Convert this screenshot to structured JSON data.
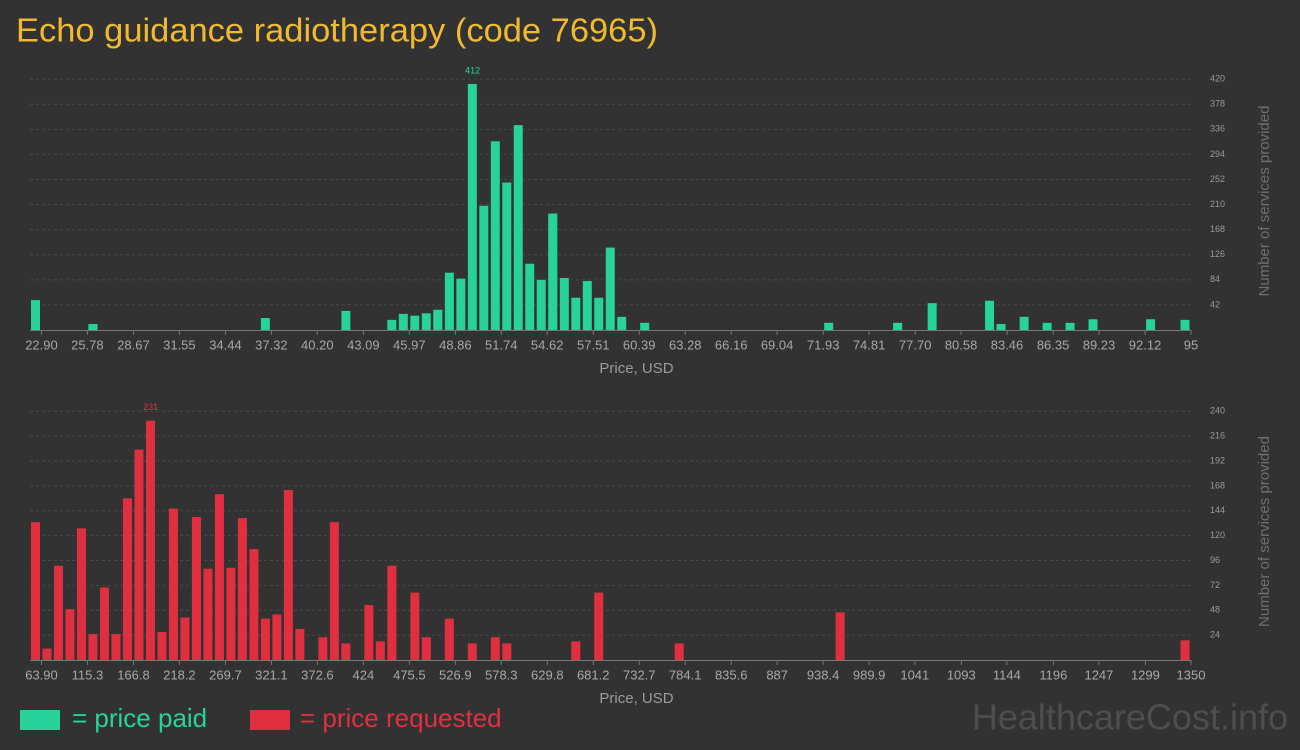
{
  "title": "Echo guidance radiotherapy (code 76965)",
  "watermark": "HealthcareCost.info",
  "chart_data": [
    {
      "type": "histogram",
      "xlabel": "Price, USD",
      "ylabel": "Number of services provided",
      "series": [
        {
          "name": "= price paid",
          "color": "#27d39a",
          "values": [
            50,
            0,
            0,
            0,
            0,
            10,
            0,
            0,
            0,
            0,
            0,
            0,
            0,
            0,
            0,
            0,
            0,
            0,
            0,
            0,
            20,
            0,
            0,
            0,
            0,
            0,
            0,
            32,
            0,
            0,
            0,
            17,
            27,
            24,
            28,
            34,
            96,
            86,
            412,
            208,
            316,
            247,
            343,
            111,
            84,
            195,
            87,
            54,
            82,
            54,
            138,
            22,
            0,
            12,
            0,
            0,
            0,
            0,
            0,
            0,
            0,
            0,
            0,
            0,
            0,
            0,
            0,
            0,
            0,
            12,
            0,
            0,
            0,
            0,
            0,
            12,
            0,
            0,
            45,
            0,
            0,
            0,
            0,
            49,
            10,
            0,
            22,
            0,
            12,
            0,
            12,
            0,
            18,
            0,
            0,
            0,
            0,
            18,
            0,
            0,
            17
          ]
        }
      ],
      "bins": [
        22.18,
        22.9,
        23.62,
        24.34,
        25.06,
        25.78,
        26.51,
        27.23,
        27.95,
        28.67,
        29.39,
        30.11,
        30.83,
        31.55,
        32.27,
        32.99,
        33.72,
        34.44,
        35.16,
        35.88,
        36.6,
        37.32,
        38.04,
        38.76,
        39.48,
        40.2,
        40.93,
        41.65,
        42.37,
        43.09,
        43.81,
        44.53,
        45.25,
        45.97,
        46.69,
        47.41,
        48.14,
        48.86,
        49.58,
        50.3,
        51.02,
        51.74,
        52.46,
        53.18,
        53.9,
        54.62,
        55.35,
        56.07,
        56.79,
        57.51,
        58.23,
        58.95,
        59.67,
        60.39,
        61.11,
        61.83,
        62.56,
        63.28,
        64.0,
        64.72,
        65.44,
        66.16,
        66.88,
        67.6,
        68.32,
        69.04,
        69.77,
        70.49,
        71.21,
        71.93,
        72.65,
        73.37,
        74.09,
        74.81,
        75.53,
        76.25,
        76.98,
        77.7,
        78.42,
        79.14,
        79.86,
        80.58,
        81.3,
        82.02,
        82.74,
        83.46,
        84.19,
        84.91,
        85.63,
        86.35,
        87.07,
        87.79,
        88.51,
        89.23,
        89.95,
        90.67,
        91.4,
        92.12,
        92.84,
        93.56,
        94.28,
        95.0
      ],
      "xlim": [
        22.18,
        95
      ],
      "xticks": [
        {
          "value": 22.9,
          "label": "22.90"
        },
        25.78,
        28.67,
        31.55,
        34.44,
        37.32,
        {
          "value": 40.2,
          "label": "40.20"
        },
        43.09,
        45.97,
        48.86,
        51.74,
        54.62,
        57.51,
        60.39,
        63.28,
        66.16,
        69.04,
        71.93,
        74.81,
        {
          "value": 77.7,
          "label": "77.70"
        },
        80.58,
        83.46,
        86.35,
        89.23,
        92.12,
        95
      ],
      "ylim": [
        0,
        432
      ],
      "yticks": [
        42,
        84,
        126,
        168,
        210,
        252,
        294,
        336,
        378,
        420
      ],
      "grid": true
    },
    {
      "type": "histogram",
      "xlabel": "Price, USD",
      "ylabel": "Number of services provided",
      "series": [
        {
          "name": "= price requested",
          "color": "#e0303f",
          "values": [
            133,
            11,
            91,
            49,
            127,
            25,
            70,
            25,
            156,
            203,
            231,
            27,
            146,
            41,
            138,
            88,
            160,
            89,
            137,
            107,
            40,
            44,
            164,
            30,
            0,
            22,
            133,
            16,
            0,
            53,
            18,
            91,
            0,
            65,
            22,
            0,
            40,
            0,
            16,
            0,
            22,
            16,
            0,
            0,
            0,
            0,
            0,
            18,
            0,
            65,
            0,
            0,
            0,
            0,
            0,
            0,
            16,
            0,
            0,
            0,
            0,
            0,
            0,
            0,
            0,
            0,
            0,
            0,
            0,
            0,
            46,
            0,
            0,
            0,
            0,
            0,
            0,
            0,
            0,
            0,
            0,
            0,
            0,
            0,
            0,
            0,
            0,
            0,
            0,
            0,
            0,
            0,
            0,
            0,
            0,
            0,
            0,
            0,
            0,
            0,
            19
          ]
        }
      ],
      "bins": [
        51.04,
        63.9,
        76.76,
        89.62,
        102.48,
        115.35,
        128.21,
        141.07,
        153.93,
        166.79,
        179.65,
        192.51,
        205.37,
        218.23,
        231.09,
        243.96,
        256.82,
        269.68,
        282.54,
        295.4,
        308.26,
        321.12,
        333.98,
        346.84,
        359.7,
        372.57,
        385.43,
        398.29,
        411.15,
        424.01,
        436.87,
        449.73,
        462.59,
        475.45,
        488.31,
        501.18,
        514.04,
        526.9,
        539.76,
        552.62,
        565.48,
        578.34,
        591.2,
        604.06,
        616.92,
        629.79,
        642.65,
        655.51,
        668.37,
        681.23,
        694.09,
        706.95,
        719.81,
        732.67,
        745.53,
        758.4,
        771.26,
        784.12,
        796.98,
        809.84,
        822.7,
        835.56,
        848.42,
        861.28,
        874.14,
        887.01,
        899.87,
        912.73,
        925.59,
        938.45,
        951.31,
        964.17,
        977.03,
        989.89,
        1002.75,
        1015.62,
        1028.48,
        1041.34,
        1054.2,
        1067.06,
        1079.92,
        1092.78,
        1105.64,
        1118.5,
        1131.36,
        1144.23,
        1157.09,
        1169.95,
        1182.81,
        1195.67,
        1208.53,
        1221.39,
        1234.25,
        1247.11,
        1259.97,
        1272.84,
        1285.7,
        1298.56,
        1311.42,
        1324.28,
        1337.14,
        1350.0
      ],
      "xlim": [
        51.04,
        1350
      ],
      "xticks": [
        {
          "value": 63.9,
          "label": "63.90"
        },
        115.3,
        166.8,
        218.2,
        269.7,
        321.1,
        372.6,
        424,
        475.5,
        526.9,
        578.3,
        629.8,
        681.2,
        732.7,
        784.1,
        835.6,
        887,
        938.4,
        989.9,
        1041,
        1093,
        1144,
        1196,
        1247,
        1299,
        1350
      ],
      "ylim": [
        0,
        248
      ],
      "yticks": [
        24,
        48,
        72,
        96,
        120,
        144,
        168,
        192,
        216,
        240
      ],
      "grid": true
    }
  ]
}
